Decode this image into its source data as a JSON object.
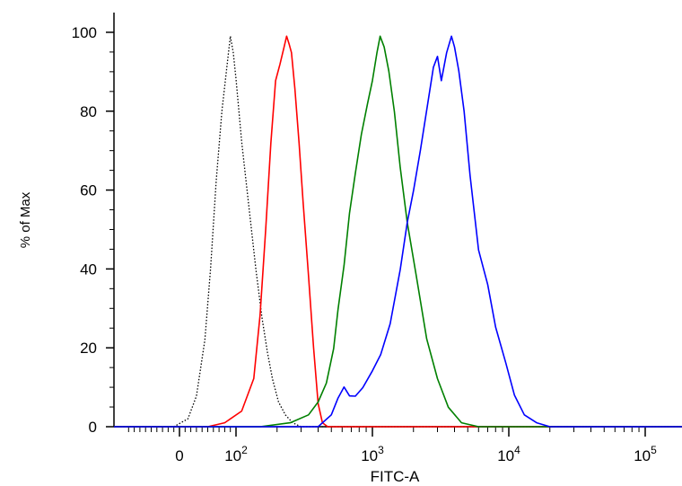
{
  "chart_data": {
    "type": "line",
    "title": "",
    "xlabel": "FITC-A",
    "ylabel": "% of Max",
    "x_scale": "biexponential",
    "x_tick_labels": [
      {
        "value": 0,
        "base": "0",
        "exp": ""
      },
      {
        "value": 100,
        "base": "10",
        "exp": "2"
      },
      {
        "value": 1000,
        "base": "10",
        "exp": "3"
      },
      {
        "value": 10000,
        "base": "10",
        "exp": "4"
      },
      {
        "value": 100000,
        "base": "10",
        "exp": "5"
      }
    ],
    "y_ticks": [
      {
        "value": 0,
        "label": "0"
      },
      {
        "value": 20,
        "label": "20"
      },
      {
        "value": 40,
        "label": "40"
      },
      {
        "value": 60,
        "label": "60"
      },
      {
        "value": 80,
        "label": "80"
      },
      {
        "value": 100,
        "label": "100"
      }
    ],
    "ylim": [
      0,
      105
    ],
    "grid": false,
    "legend": "none",
    "series": [
      {
        "color": "#000000",
        "style": "dotted",
        "x": [
          -10,
          15,
          30,
          45,
          55,
          65,
          75,
          85,
          90,
          95,
          100,
          110,
          125,
          140,
          155,
          170,
          185,
          205,
          230,
          260,
          300
        ],
        "y": [
          0,
          2,
          8,
          22,
          40,
          62,
          80,
          93,
          99,
          95,
          88,
          72,
          55,
          40,
          28,
          19,
          12,
          6,
          3,
          1,
          0
        ]
      },
      {
        "color": "#ff0000",
        "style": "solid",
        "x": [
          50,
          80,
          110,
          135,
          150,
          165,
          180,
          195,
          210,
          225,
          235,
          245,
          255,
          270,
          290,
          310,
          340,
          370,
          400,
          430,
          470
        ],
        "y": [
          0,
          1,
          4,
          12,
          28,
          50,
          72,
          88,
          92,
          96,
          99,
          97,
          95,
          86,
          72,
          57,
          38,
          20,
          6,
          1,
          0
        ]
      },
      {
        "color": "#008000",
        "style": "solid",
        "x": [
          150,
          250,
          340,
          400,
          460,
          520,
          560,
          620,
          680,
          750,
          830,
          920,
          1000,
          1080,
          1140,
          1220,
          1320,
          1450,
          1600,
          1800,
          2100,
          2500,
          3000,
          3600,
          4500,
          6000
        ],
        "y": [
          0,
          1,
          3,
          6,
          11,
          20,
          30,
          41,
          54,
          64,
          74,
          82,
          88,
          95,
          99,
          96,
          90,
          80,
          66,
          52,
          38,
          22,
          12,
          5,
          1,
          0
        ]
      },
      {
        "color": "#0000ff",
        "style": "solid",
        "x": [
          400,
          500,
          560,
          620,
          680,
          750,
          850,
          1000,
          1150,
          1350,
          1600,
          1800,
          2000,
          2250,
          2500,
          2800,
          3000,
          3200,
          3500,
          3800,
          4000,
          4300,
          4700,
          5200,
          6000,
          7000,
          8000,
          9500,
          11000,
          13000,
          16000,
          20000
        ],
        "y": [
          0,
          3,
          7,
          10,
          8,
          8,
          10,
          14,
          18,
          26,
          40,
          52,
          60,
          70,
          80,
          91,
          94,
          88,
          95,
          99,
          96,
          90,
          80,
          64,
          45,
          36,
          25,
          16,
          8,
          3,
          1,
          0
        ]
      }
    ]
  }
}
